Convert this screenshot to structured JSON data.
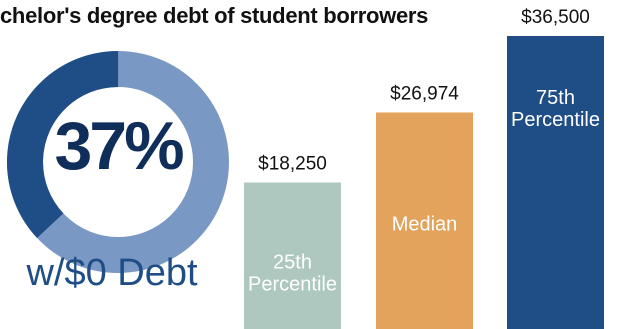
{
  "title": "chelor's degree debt of student borrowers",
  "donut": {
    "percent_label": "37%",
    "fraction": 0.37,
    "caption": "w/$0 Debt",
    "colors": {
      "highlight": "#1f4e86",
      "rest": "#7a98c4"
    }
  },
  "chart_data": {
    "type": "bar",
    "title": "chelor's degree debt of student borrowers",
    "categories": [
      "25th Percentile",
      "Median",
      "75th Percentile"
    ],
    "values": [
      18250,
      26974,
      36500
    ],
    "value_labels": [
      "$18,250",
      "$26,974",
      "$36,500"
    ],
    "bar_labels": [
      [
        "25th",
        "Percentile"
      ],
      [
        "Median"
      ],
      [
        "75th",
        "Percentile"
      ]
    ],
    "colors": [
      "#aec8bf",
      "#e3a35c",
      "#1f4e86"
    ],
    "ylim": [
      0,
      36500
    ],
    "grid": false
  }
}
